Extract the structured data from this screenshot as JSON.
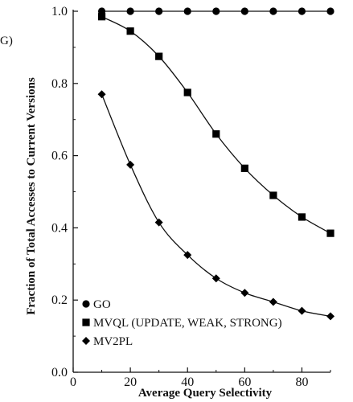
{
  "chart_data": {
    "type": "line",
    "xlabel": "Average Query Selectivity",
    "ylabel": "Fraction of Total Accesses to Current Versions",
    "xlim": [
      0,
      90
    ],
    "ylim": [
      0.0,
      1.0
    ],
    "x_ticks": [
      "0",
      "20",
      "40",
      "60",
      "80"
    ],
    "y_ticks": [
      "0.0",
      "0.2",
      "0.4",
      "0.6",
      "0.8",
      "1.0"
    ],
    "clipped_text": "G)",
    "legend_placement": "bottom-left",
    "grid": false,
    "series": [
      {
        "name": "GO",
        "marker": "circle",
        "x": [
          10,
          20,
          30,
          40,
          50,
          60,
          70,
          80,
          90
        ],
        "y": [
          1.0,
          1.0,
          1.0,
          1.0,
          1.0,
          1.0,
          1.0,
          1.0,
          1.0
        ]
      },
      {
        "name": "MVQL (UPDATE, WEAK, STRONG)",
        "marker": "square",
        "x": [
          10,
          20,
          30,
          40,
          50,
          60,
          70,
          80,
          90
        ],
        "y": [
          0.985,
          0.945,
          0.875,
          0.775,
          0.66,
          0.565,
          0.49,
          0.43,
          0.385
        ]
      },
      {
        "name": "MV2PL",
        "marker": "diamond",
        "x": [
          10,
          20,
          30,
          40,
          50,
          60,
          70,
          80,
          90
        ],
        "y": [
          0.77,
          0.575,
          0.415,
          0.325,
          0.26,
          0.22,
          0.195,
          0.17,
          0.155
        ]
      }
    ]
  }
}
